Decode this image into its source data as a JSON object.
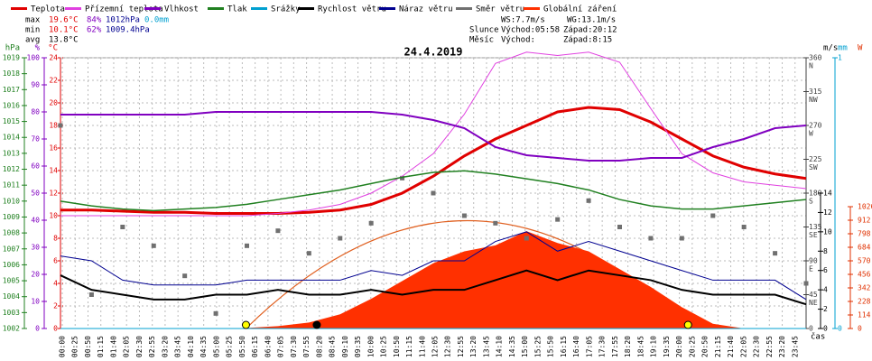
{
  "chart_data": {
    "type": "line",
    "title": "24.4.2019",
    "x_label": "čas",
    "xlim": [
      0,
      24
    ],
    "categories": [
      "00:00",
      "00:25",
      "00:50",
      "01:15",
      "01:40",
      "02:05",
      "02:30",
      "02:55",
      "03:20",
      "03:45",
      "04:10",
      "04:35",
      "05:00",
      "05:25",
      "05:50",
      "06:15",
      "06:40",
      "07:05",
      "07:30",
      "07:55",
      "08:20",
      "08:45",
      "09:10",
      "09:35",
      "10:00",
      "10:25",
      "10:50",
      "11:15",
      "11:40",
      "12:05",
      "12:30",
      "12:55",
      "13:20",
      "13:45",
      "14:10",
      "14:35",
      "15:00",
      "15:25",
      "15:50",
      "16:15",
      "16:40",
      "17:05",
      "17:30",
      "17:55",
      "18:20",
      "18:45",
      "19:10",
      "19:35",
      "20:00",
      "20:25",
      "20:50",
      "21:15",
      "21:40",
      "22:05",
      "22:30",
      "22:55",
      "23:20",
      "23:45"
    ],
    "x": [
      0,
      1,
      2,
      3,
      4,
      5,
      6,
      7,
      8,
      9,
      10,
      11,
      12,
      13,
      14,
      15,
      16,
      17,
      18,
      19,
      20,
      21,
      22,
      23,
      24
    ],
    "grid": true,
    "axes": [
      {
        "name": "hPa",
        "color": "#208020",
        "lim": [
          1002,
          1019
        ],
        "ticks": [
          1002,
          1003,
          1004,
          1005,
          1006,
          1007,
          1008,
          1009,
          1010,
          1011,
          1012,
          1013,
          1014,
          1015,
          1016,
          1017,
          1018,
          1019
        ]
      },
      {
        "name": "%",
        "color": "#8000c0",
        "lim": [
          0,
          100
        ],
        "ticks": [
          0,
          10,
          20,
          30,
          40,
          50,
          60,
          70,
          80,
          90,
          100
        ]
      },
      {
        "name": "°C",
        "color": "#e00000",
        "lim": [
          0,
          24
        ],
        "ticks": [
          0,
          2,
          4,
          6,
          8,
          10,
          12,
          14,
          16,
          18,
          20,
          22,
          24
        ]
      },
      {
        "color": "#404040",
        "lim": [
          0,
          360
        ],
        "ticks": [
          0,
          45,
          90,
          135,
          180,
          225,
          270,
          315,
          360
        ],
        "compass": [
          "NE",
          "E",
          "SE",
          "S",
          "SW",
          "W",
          "NW",
          "N"
        ]
      },
      {
        "name": "m/s",
        "color": "#000000",
        "lim": [
          0,
          28
        ],
        "ticks": [
          0,
          2,
          4,
          6,
          8,
          10,
          12,
          14
        ]
      },
      {
        "name": "mm",
        "color": "#00a0d0",
        "lim": [
          0,
          1
        ],
        "ticks": [
          0,
          1
        ]
      },
      {
        "name": "W",
        "color": "#e03000",
        "lim": [
          0,
          2280
        ],
        "ticks": [
          0,
          114,
          228,
          342,
          456,
          570,
          684,
          798,
          912,
          1026
        ]
      }
    ],
    "series": [
      {
        "name": "Teplota",
        "color": "#e00000",
        "axis": 2,
        "kind": "line",
        "width": 3,
        "values": [
          10.5,
          10.5,
          10.4,
          10.3,
          10.3,
          10.2,
          10.2,
          10.2,
          10.3,
          10.5,
          11,
          12,
          13.5,
          15.3,
          16.8,
          18,
          19.2,
          19.6,
          19.4,
          18.3,
          16.8,
          15.3,
          14.3,
          13.7,
          13.3
        ]
      },
      {
        "name": "Přízemní teplota",
        "color": "#e040e0",
        "axis": 2,
        "kind": "line",
        "width": 1,
        "values": [
          10,
          10,
          10,
          10,
          10,
          10,
          10,
          10.2,
          10.5,
          11,
          12,
          13.5,
          15.5,
          19,
          23.5,
          24.5,
          24.2,
          24.5,
          23.6,
          19.5,
          15.5,
          13.8,
          13,
          12.7,
          12.4
        ]
      },
      {
        "name": "Vlhkost",
        "color": "#8000c0",
        "axis": 1,
        "kind": "line",
        "width": 2,
        "values": [
          79,
          79,
          79,
          79,
          79,
          80,
          80,
          80,
          80,
          80,
          80,
          79,
          77,
          74,
          67,
          64,
          63,
          62,
          62,
          63,
          63,
          67,
          70,
          74,
          75
        ]
      },
      {
        "name": "Tlak",
        "color": "#208020",
        "axis": 0,
        "kind": "line",
        "width": 1.5,
        "values": [
          1010,
          1009.7,
          1009.5,
          1009.4,
          1009.5,
          1009.6,
          1009.8,
          1010.1,
          1010.4,
          1010.7,
          1011.1,
          1011.5,
          1011.8,
          1011.9,
          1011.7,
          1011.4,
          1011.1,
          1010.7,
          1010.1,
          1009.7,
          1009.5,
          1009.5,
          1009.7,
          1009.9,
          1010.1
        ]
      },
      {
        "name": "Srážky",
        "color": "#00a0d0",
        "axis": 5,
        "kind": "line",
        "width": 1,
        "values": [
          0,
          0,
          0,
          0,
          0,
          0,
          0,
          0,
          0,
          0,
          0,
          0,
          0,
          0,
          0,
          0,
          0,
          0,
          0,
          0,
          0,
          0,
          0,
          0,
          0
        ]
      },
      {
        "name": "Rychlost větru",
        "color": "#000000",
        "axis": 4,
        "kind": "line",
        "width": 2,
        "values": [
          5.5,
          4,
          3.5,
          3,
          3,
          3.5,
          3.5,
          4,
          3.5,
          3.5,
          4,
          3.5,
          4,
          4,
          5,
          6,
          5,
          6,
          5.5,
          5,
          4,
          3.5,
          3.5,
          3.5,
          2.5
        ]
      },
      {
        "name": "Náraz větru",
        "color": "#000090",
        "axis": 4,
        "kind": "line",
        "width": 1,
        "values": [
          7.5,
          7,
          5,
          4.5,
          4.5,
          4.5,
          5,
          5,
          5,
          5,
          6,
          5.5,
          7,
          7,
          9,
          10,
          8,
          9,
          8,
          7,
          6,
          5,
          5,
          5,
          3
        ]
      },
      {
        "name": "Směr větru",
        "color": "#707070",
        "axis": 3,
        "kind": "scatter",
        "values": [
          270,
          45,
          135,
          110,
          70,
          20,
          110,
          130,
          100,
          120,
          140,
          200,
          180,
          150,
          140,
          120,
          145,
          170,
          135,
          120,
          120,
          150,
          135,
          100,
          60
        ]
      },
      {
        "name": "Globální záření",
        "color": "#ff3000",
        "axis": 6,
        "kind": "area",
        "values": [
          0,
          0,
          0,
          0,
          0,
          0,
          5,
          20,
          50,
          120,
          250,
          400,
          550,
          650,
          700,
          820,
          720,
          650,
          500,
          350,
          180,
          40,
          0,
          0,
          0
        ]
      }
    ],
    "info": [
      [
        "max",
        "19.6°C",
        "84%",
        "1012hPa",
        "0.0mm"
      ],
      [
        "min",
        "10.1°C",
        "62%",
        "1009.4hPa"
      ],
      [
        "avg",
        "13.8°C"
      ]
    ],
    "wind_info": [
      "WS:7.7m/s",
      "WG:13.1m/s"
    ],
    "sun_info": [
      "Slunce",
      "Východ:05:58",
      "Západ:20:12"
    ],
    "moon_info": [
      "Měsíc",
      "Východ:",
      "Západ:8:15"
    ]
  }
}
